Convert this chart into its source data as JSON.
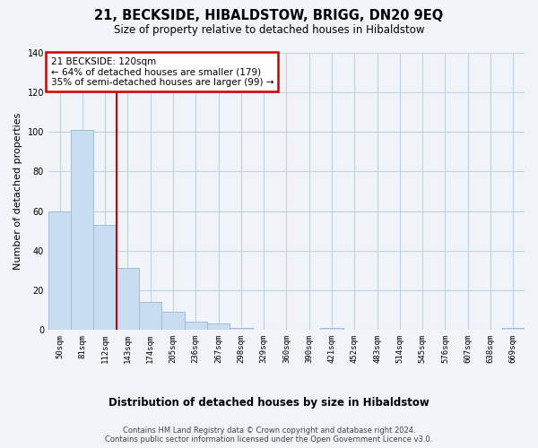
{
  "title": "21, BECKSIDE, HIBALDSTOW, BRIGG, DN20 9EQ",
  "subtitle": "Size of property relative to detached houses in Hibaldstow",
  "xlabel": "Distribution of detached houses by size in Hibaldstow",
  "ylabel": "Number of detached properties",
  "bar_values": [
    60,
    101,
    53,
    31,
    14,
    9,
    4,
    3,
    1,
    0,
    0,
    0,
    1,
    0,
    0,
    0,
    0,
    0,
    0,
    0,
    1
  ],
  "bar_labels": [
    "50sqm",
    "81sqm",
    "112sqm",
    "143sqm",
    "174sqm",
    "205sqm",
    "236sqm",
    "267sqm",
    "298sqm",
    "329sqm",
    "360sqm",
    "390sqm",
    "421sqm",
    "452sqm",
    "483sqm",
    "514sqm",
    "545sqm",
    "576sqm",
    "607sqm",
    "638sqm",
    "669sqm"
  ],
  "bar_color": "#c8ddf0",
  "bar_edge_color": "#a0bcd8",
  "property_line_x": 2.5,
  "property_line_color": "#cc0000",
  "annotation_title": "21 BECKSIDE: 120sqm",
  "annotation_line1": "← 64% of detached houses are smaller (179)",
  "annotation_line2": "35% of semi-detached houses are larger (99) →",
  "annotation_box_color": "#ffffff",
  "annotation_box_edge": "#cc0000",
  "ylim": [
    0,
    140
  ],
  "yticks": [
    0,
    20,
    40,
    60,
    80,
    100,
    120,
    140
  ],
  "grid_color": "#c0d0e0",
  "footer_line1": "Contains HM Land Registry data © Crown copyright and database right 2024.",
  "footer_line2": "Contains public sector information licensed under the Open Government Licence v3.0.",
  "bg_color": "#f0f4f8"
}
